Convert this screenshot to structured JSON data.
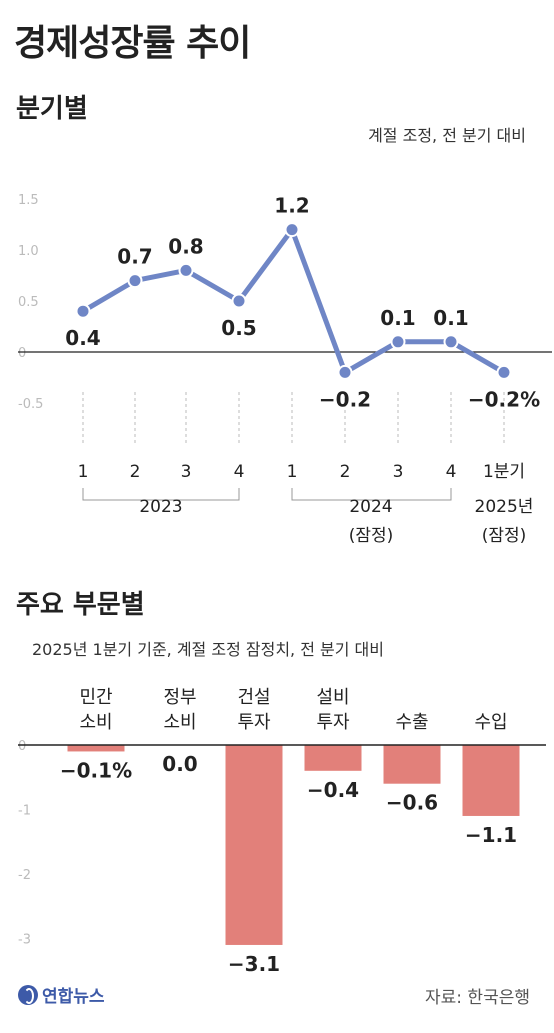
{
  "title": "경제성장률 추이",
  "section1": {
    "title": "분기별",
    "note": "계절 조정, 전 분기 대비"
  },
  "section2": {
    "title": "주요 부문별",
    "note": "2025년 1분기 기준, 계절 조정 잠정치, 전 분기 대비"
  },
  "source": "자료: 한국은행",
  "logo": {
    "text": "연합뉴스",
    "icon": "yonhap-logo-icon"
  },
  "colors": {
    "line": "#6f86c6",
    "point": "#6f86c6",
    "bar": "#e2807a",
    "axis": "#222222",
    "grid": "#bbbbbb"
  },
  "chart_data": [
    {
      "type": "line",
      "ylim": [
        -0.5,
        1.5
      ],
      "yticks": [
        "1.5",
        "1.0",
        "0.5",
        "0",
        "-0.5"
      ],
      "x": [
        "1",
        "2",
        "3",
        "4",
        "1",
        "2",
        "3",
        "4",
        "1분기"
      ],
      "values": [
        0.4,
        0.7,
        0.8,
        0.5,
        1.2,
        -0.2,
        0.1,
        0.1,
        -0.2
      ],
      "data_labels": [
        "0.4",
        "0.7",
        "0.8",
        "0.5",
        "1.2",
        "−0.2",
        "0.1",
        "0.1",
        "−0.2%"
      ],
      "groups": [
        {
          "label": "2023",
          "sub": ""
        },
        {
          "label": "2024",
          "sub": "(잠정)"
        },
        {
          "label": "2025년",
          "sub": "(잠정)"
        }
      ]
    },
    {
      "type": "bar",
      "ylim": [
        -3.2,
        0
      ],
      "yticks": [
        "0",
        "-1",
        "-2",
        "-3"
      ],
      "categories": [
        [
          "민간",
          "소비"
        ],
        [
          "정부",
          "소비"
        ],
        [
          "건설",
          "투자"
        ],
        [
          "설비",
          "투자"
        ],
        [
          "수출"
        ],
        [
          "수입"
        ]
      ],
      "values": [
        -0.1,
        0.0,
        -3.1,
        -0.4,
        -0.6,
        -1.1
      ],
      "data_labels": [
        "−0.1%",
        "0.0",
        "−3.1",
        "−0.4",
        "−0.6",
        "−1.1"
      ]
    }
  ]
}
